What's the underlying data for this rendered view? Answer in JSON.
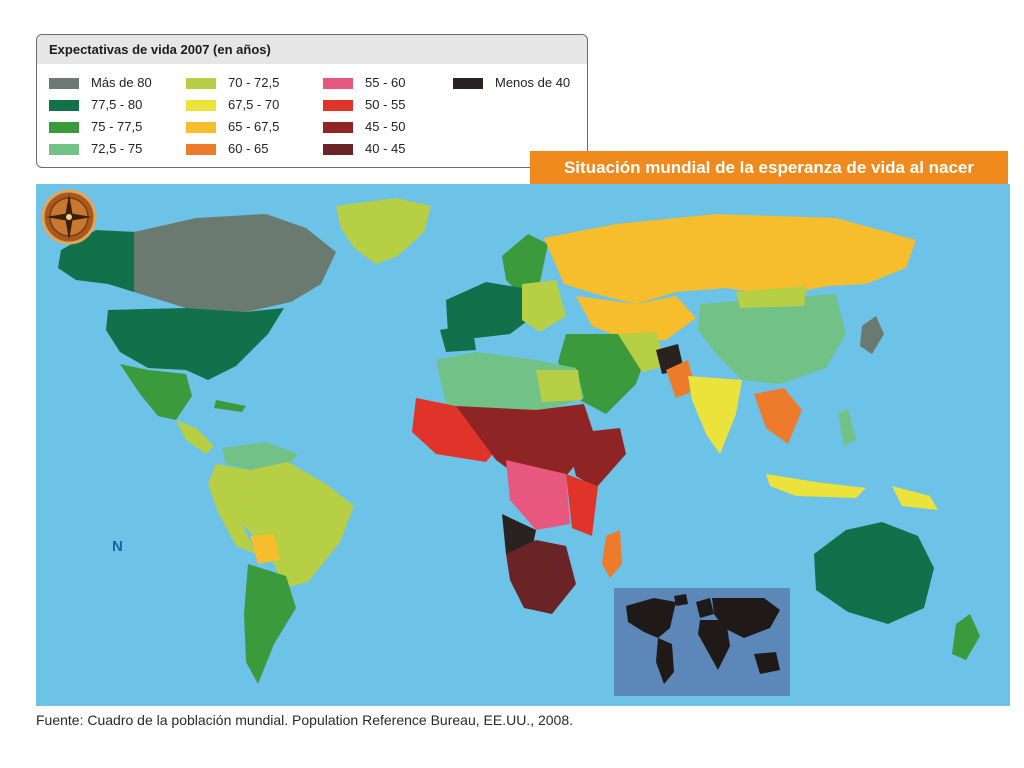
{
  "legend": {
    "title": "Expectativas de vida 2007 (en años)",
    "items": [
      {
        "label": "Más de 80",
        "color": "#6b7a70"
      },
      {
        "label": "77,5 - 80",
        "color": "#12704a"
      },
      {
        "label": "75 - 77,5",
        "color": "#3a9a3c"
      },
      {
        "label": "72,5 - 75",
        "color": "#72c187"
      },
      {
        "label": "70 - 72,5",
        "color": "#b6cf45"
      },
      {
        "label": "67,5 - 70",
        "color": "#ebe23b"
      },
      {
        "label": "65 - 67,5",
        "color": "#f6bd2d"
      },
      {
        "label": "60 - 65",
        "color": "#ec7b2c"
      },
      {
        "label": "55 - 60",
        "color": "#e8577d"
      },
      {
        "label": "50 - 55",
        "color": "#e0342b"
      },
      {
        "label": "45 - 50",
        "color": "#8f2424"
      },
      {
        "label": "40 - 45",
        "color": "#6a2426"
      },
      {
        "label": "Menos de 40",
        "color": "#2a2220"
      }
    ]
  },
  "map": {
    "title": "Situación mundial de la esperanza de vida al nacer",
    "compass_label": "N",
    "ocean_color": "#6cc3e7"
  },
  "source": "Fuente: Cuadro de la población mundial. Population Reference Bureau, EE.UU., 2008."
}
